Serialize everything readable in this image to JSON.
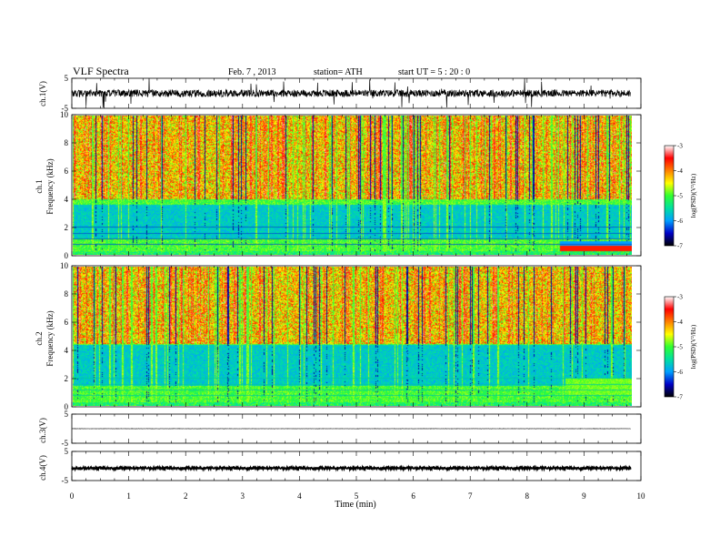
{
  "header": {
    "title": "VLF  Spectra",
    "date": "Feb. 7  , 2013",
    "station": "station= ATH",
    "start": "start  UT  =   5  : 20 : 0"
  },
  "chart_data": {
    "type": "heatmap",
    "xlabel": "Time  (min)",
    "xlim": [
      0,
      10
    ],
    "x_ticks": [
      "0",
      "1",
      "2",
      "3",
      "4",
      "5",
      "6",
      "7",
      "8",
      "9",
      "10"
    ],
    "data_end_min": 9.82,
    "panels": [
      {
        "id": "ch1-wave",
        "kind": "waveform",
        "ylabel": "ch.1(V)",
        "ylim": [
          -5,
          5
        ],
        "y_ticks": [
          "5",
          "-5"
        ],
        "amplitude_v": 1.2,
        "spikes": true
      },
      {
        "id": "ch1-spec",
        "kind": "spectrogram",
        "ylabel": "ch.1",
        "ylabel2": "Frequency  (kHz)",
        "ylim": [
          0,
          10
        ],
        "y_ticks": [
          "0",
          "2",
          "4",
          "6",
          "8",
          "10"
        ],
        "green_band_top_khz": 4.0,
        "blue_band_khz": [
          1.2,
          3.6
        ]
      },
      {
        "id": "ch2-spec",
        "kind": "spectrogram",
        "ylabel": "ch.2",
        "ylabel2": "Frequency  (kHz)",
        "ylim": [
          0,
          10
        ],
        "y_ticks": [
          "0",
          "2",
          "4",
          "6",
          "8",
          "10"
        ],
        "green_band_top_khz": 4.5,
        "blue_band_khz": [
          1.5,
          4.4
        ]
      },
      {
        "id": "ch3-wave",
        "kind": "waveform",
        "ylabel": "ch.3(V)",
        "ylim": [
          -5,
          5
        ],
        "y_ticks": [
          "5",
          "-5"
        ],
        "amplitude_v": 0.05,
        "offset_v": 0.0,
        "spikes": false
      },
      {
        "id": "ch4-wave",
        "kind": "waveform",
        "ylabel": "ch.4(V)",
        "ylim": [
          -5,
          5
        ],
        "y_ticks": [
          "5",
          "-5"
        ],
        "amplitude_v": 0.4,
        "offset_v": -0.8,
        "spikes": false
      }
    ],
    "colorbar": {
      "label": "log(PSD)(V²/Hz)",
      "range": [
        -7,
        -3
      ],
      "ticks": [
        "-3",
        "-4",
        "-5",
        "-6",
        "-7"
      ],
      "colors": [
        "#000000",
        "#0000c8",
        "#00a0ff",
        "#00e0a0",
        "#30ff30",
        "#ffff00",
        "#ff8000",
        "#ff0000",
        "#ffffff"
      ]
    }
  }
}
